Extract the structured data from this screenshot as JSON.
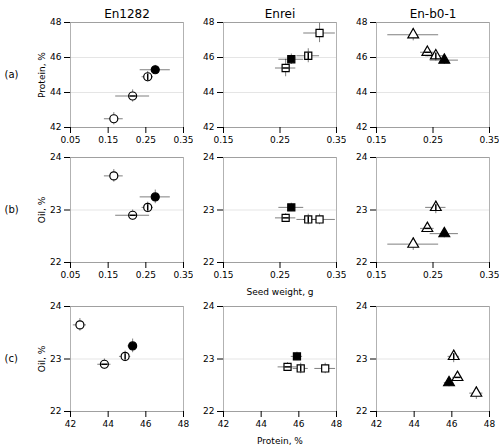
{
  "chart_data": [
    {
      "type": "scatter",
      "title": "En1282",
      "annotations": [
        "(a)"
      ],
      "ylabel": "Protein, %",
      "x": [
        0.165,
        0.215,
        0.255,
        0.275
      ],
      "values": [
        42.5,
        43.8,
        44.9,
        45.3
      ],
      "xerr": [
        0.025,
        0.045,
        0.015,
        0.04
      ],
      "yerr": [
        0.35,
        0.35,
        0.3,
        0.25
      ],
      "markers": [
        "open_circle",
        "h_stripe_circle",
        "v_stripe_circle",
        "filled_circle"
      ],
      "xlim": [
        0.05,
        0.35
      ],
      "xticks": [
        0.05,
        0.15,
        0.25,
        0.35
      ],
      "ylim": [
        42,
        48
      ],
      "yticks": [
        42,
        44,
        46,
        48
      ],
      "grid": true
    },
    {
      "type": "scatter",
      "title": "Enrei",
      "x": [
        0.26,
        0.27,
        0.3,
        0.32
      ],
      "values": [
        45.4,
        45.9,
        46.1,
        47.4
      ],
      "xerr": [
        0.018,
        0.022,
        0.02,
        0.028
      ],
      "yerr": [
        0.5,
        0.3,
        0.4,
        0.55
      ],
      "markers": [
        "h_stripe_square",
        "filled_square",
        "v_stripe_square",
        "open_square"
      ],
      "xlim": [
        0.15,
        0.35
      ],
      "xticks": [
        0.15,
        0.25,
        0.35
      ],
      "ylim": [
        42,
        48
      ],
      "yticks": [
        42,
        44,
        46,
        48
      ],
      "grid": true
    },
    {
      "type": "scatter",
      "title": "En-b0-1",
      "x": [
        0.215,
        0.24,
        0.255,
        0.27
      ],
      "values": [
        47.3,
        46.3,
        46.1,
        45.85
      ],
      "xerr": [
        0.045,
        0.012,
        0.018,
        0.025
      ],
      "yerr": [
        0.35,
        0.25,
        0.3,
        0.25
      ],
      "markers": [
        "open_triangle",
        "h_stripe_triangle",
        "v_stripe_triangle",
        "filled_triangle"
      ],
      "xlim": [
        0.15,
        0.35
      ],
      "xticks": [
        0.15,
        0.25,
        0.35
      ],
      "ylim": [
        42,
        48
      ],
      "yticks": [
        42,
        44,
        46,
        48
      ],
      "grid": true
    },
    {
      "type": "scatter",
      "annotations": [
        "(b)"
      ],
      "ylabel": "Oil, %",
      "x": [
        0.165,
        0.215,
        0.255,
        0.275
      ],
      "values": [
        23.65,
        22.9,
        23.05,
        23.25
      ],
      "xerr": [
        0.025,
        0.045,
        0.015,
        0.04
      ],
      "yerr": [
        0.12,
        0.1,
        0.1,
        0.13
      ],
      "markers": [
        "open_circle",
        "h_stripe_circle",
        "v_stripe_circle",
        "filled_circle"
      ],
      "xlim": [
        0.05,
        0.35
      ],
      "xticks": [
        0.05,
        0.15,
        0.25,
        0.35
      ],
      "ylim": [
        22,
        24
      ],
      "yticks": [
        22,
        23,
        24
      ],
      "grid": true
    },
    {
      "type": "scatter",
      "xlabel": "Seed weight, g",
      "x": [
        0.26,
        0.27,
        0.3,
        0.32
      ],
      "values": [
        22.85,
        23.05,
        22.82,
        22.82
      ],
      "xerr": [
        0.018,
        0.022,
        0.02,
        0.028
      ],
      "yerr": [
        0.08,
        0.08,
        0.1,
        0.1
      ],
      "markers": [
        "h_stripe_square",
        "filled_square",
        "v_stripe_square",
        "open_square"
      ],
      "xlim": [
        0.15,
        0.35
      ],
      "xticks": [
        0.15,
        0.25,
        0.35
      ],
      "ylim": [
        22,
        24
      ],
      "yticks": [
        22,
        23,
        24
      ],
      "grid": true
    },
    {
      "type": "scatter",
      "x": [
        0.215,
        0.24,
        0.255,
        0.27
      ],
      "values": [
        22.35,
        22.65,
        23.05,
        22.55
      ],
      "xerr": [
        0.045,
        0.012,
        0.018,
        0.025
      ],
      "yerr": [
        0.12,
        0.08,
        0.12,
        0.08
      ],
      "markers": [
        "open_triangle",
        "h_stripe_triangle",
        "v_stripe_triangle",
        "filled_triangle"
      ],
      "xlim": [
        0.15,
        0.35
      ],
      "xticks": [
        0.15,
        0.25,
        0.35
      ],
      "ylim": [
        22,
        24
      ],
      "yticks": [
        22,
        23,
        24
      ],
      "grid": true
    },
    {
      "type": "scatter",
      "annotations": [
        "(c)"
      ],
      "ylabel": "Oil, %",
      "x": [
        42.5,
        43.8,
        44.9,
        45.3
      ],
      "values": [
        23.65,
        22.9,
        23.05,
        23.25
      ],
      "xerr": [
        0.35,
        0.35,
        0.3,
        0.25
      ],
      "yerr": [
        0.12,
        0.1,
        0.1,
        0.13
      ],
      "markers": [
        "open_circle",
        "h_stripe_circle",
        "v_stripe_circle",
        "filled_circle"
      ],
      "xlim": [
        42,
        48
      ],
      "xticks": [
        42,
        44,
        46,
        48
      ],
      "ylim": [
        22,
        24
      ],
      "yticks": [
        22,
        23,
        24
      ],
      "grid": true
    },
    {
      "type": "scatter",
      "xlabel": "Protein, %",
      "x": [
        45.4,
        45.9,
        46.1,
        47.4
      ],
      "values": [
        22.85,
        23.05,
        22.82,
        22.82
      ],
      "xerr": [
        0.5,
        0.3,
        0.4,
        0.55
      ],
      "yerr": [
        0.08,
        0.08,
        0.1,
        0.1
      ],
      "markers": [
        "h_stripe_square",
        "filled_square",
        "v_stripe_square",
        "open_square"
      ],
      "xlim": [
        42,
        48
      ],
      "xticks": [
        42,
        44,
        46,
        48
      ],
      "ylim": [
        22,
        24
      ],
      "yticks": [
        22,
        23,
        24
      ],
      "grid": true
    },
    {
      "type": "scatter",
      "x": [
        47.3,
        46.3,
        46.1,
        45.85
      ],
      "values": [
        22.35,
        22.65,
        23.05,
        22.55
      ],
      "xerr": [
        0.35,
        0.25,
        0.3,
        0.25
      ],
      "yerr": [
        0.12,
        0.08,
        0.12,
        0.08
      ],
      "markers": [
        "open_triangle",
        "h_stripe_triangle",
        "v_stripe_triangle",
        "filled_triangle"
      ],
      "xlim": [
        42,
        48
      ],
      "xticks": [
        42,
        44,
        46,
        48
      ],
      "ylim": [
        22,
        24
      ],
      "yticks": [
        22,
        23,
        24
      ],
      "grid": true
    }
  ]
}
